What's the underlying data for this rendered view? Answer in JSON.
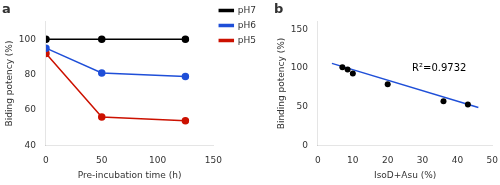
{
  "chart_data": [
    {
      "type": "line",
      "title": "a",
      "x_label": "Pre-incubation time (h)",
      "y_label": "Biding potency (%)",
      "x": [
        0,
        50,
        125
      ],
      "series": [
        {
          "name": "pH7",
          "color": "#000000",
          "marker": "circle",
          "values": [
            100,
            100,
            100
          ]
        },
        {
          "name": "pH6",
          "color": "#1F4FD8",
          "marker": "circle",
          "values": [
            95,
            81,
            79
          ]
        },
        {
          "name": "pH5",
          "color": "#CC1100",
          "marker": "circle",
          "values": [
            92,
            56,
            54
          ]
        }
      ],
      "xlim": [
        0,
        150
      ],
      "xticks": [
        0,
        50,
        100,
        150
      ],
      "ylim": [
        40,
        110
      ],
      "yticks": [
        40,
        60,
        80,
        100
      ],
      "grid": false,
      "legend": "right"
    },
    {
      "type": "scatter",
      "title": "b",
      "x_label": "IsoD+Asu (%)",
      "y_label": "Binding potency (%)",
      "series": [
        {
          "type": "scatter",
          "color": "#000000",
          "marker": "circle",
          "x": [
            7,
            8.5,
            10,
            20,
            36,
            43
          ],
          "values": [
            101,
            98,
            93,
            79,
            57,
            53
          ]
        },
        {
          "type": "line",
          "color": "#1F4FD8",
          "x": [
            4,
            46
          ],
          "values": [
            106,
            49
          ]
        }
      ],
      "annotations": [
        {
          "text": "R²=0.9732",
          "x": 27,
          "y": 93
        }
      ],
      "xlim": [
        0,
        50
      ],
      "xticks": [
        0,
        10,
        20,
        30,
        40,
        50
      ],
      "ylim": [
        0,
        160
      ],
      "yticks": [
        0,
        50,
        100,
        150
      ],
      "grid": false
    }
  ]
}
